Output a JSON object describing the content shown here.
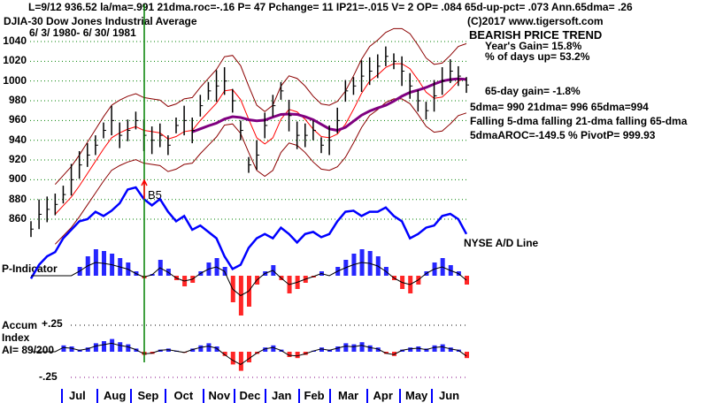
{
  "header": {
    "stats_line": "L=9/12  936.52  la/ma=.991 21dma.roc=-.16 P=  47 Pchange=  11 IP21=-.015 V= 2 OP= .084 65d-up-pct= .073 Ann.65dma= .26",
    "ticker": "DJIA-30  Dow Jones Industrial Average",
    "date_range": "6/ 3/ 1980- 6/ 30/ 1981",
    "copyright": "(C)2017 www.tigersoft.com"
  },
  "summary": {
    "trend": "BEARISH PRICE TREND",
    "year_gain": "Year's Gain= 15.8%",
    "days_up": "% of days up= 53.2%",
    "gain65": "65-day gain= -1.8%",
    "mas": "5dma= 990 21dma= 996 65dma=994",
    "falling": "Falling 5-dma  falling 21-dma  falling 65-dma",
    "aroc": "5dmaAROC=-149.5 %  PivotP= 999.93"
  },
  "labels": {
    "ad_line": "NYSE A/D Line",
    "p_indicator": "P-Indicator",
    "accum": "Accum",
    "index": "Index",
    "ai": "AI= 89/200",
    "plus25": "+.25",
    "minus25": "-.25",
    "signal": "B5"
  },
  "colors": {
    "price": "#000000",
    "ad": "#0000ff",
    "ma21": "#ff0000",
    "ma65": "#800080",
    "band": "#8b0000",
    "grid": "#008000",
    "pos": "#0000ff",
    "neg": "#ff0000",
    "signal": "#008000"
  },
  "chart_data": {
    "type": "line",
    "title": "DJIA-30 Dow Jones Industrial Average",
    "ylim": [
      850,
      1040
    ],
    "yticks": [
      1040,
      1020,
      1000,
      980,
      960,
      940,
      920,
      900,
      880,
      860
    ],
    "months": [
      "Jul",
      "Aug",
      "Sep",
      "Oct",
      "Nov",
      "Dec",
      "Jan",
      "Feb",
      "Mar",
      "Apr",
      "May",
      "Jun"
    ],
    "price": [
      850,
      865,
      870,
      875,
      885,
      900,
      915,
      925,
      935,
      950,
      960,
      945,
      950,
      960,
      945,
      940,
      945,
      935,
      955,
      960,
      950,
      975,
      990,
      995,
      1000,
      980,
      950,
      915,
      925,
      955,
      975,
      990,
      965,
      945,
      945,
      950,
      935,
      940,
      960,
      990,
      995,
      1005,
      1010,
      1015,
      1025,
      1020,
      1010,
      995,
      980,
      970,
      985,
      1000,
      1010,
      1005,
      996
    ],
    "ad_line": [
      4,
      17,
      25,
      29,
      42,
      50,
      58,
      60,
      67,
      63,
      68,
      75,
      88,
      90,
      79,
      73,
      79,
      67,
      58,
      63,
      50,
      54,
      48,
      42,
      25,
      13,
      17,
      33,
      42,
      46,
      42,
      52,
      46,
      38,
      46,
      48,
      43,
      46,
      58,
      67,
      68,
      63,
      67,
      67,
      71,
      63,
      58,
      42,
      46,
      52,
      54,
      63,
      65,
      60,
      46
    ],
    "p_indicator": [
      0,
      0,
      0,
      0,
      0,
      0,
      10,
      22,
      30,
      28,
      25,
      20,
      15,
      5,
      -3,
      2,
      18,
      8,
      -5,
      -12,
      -8,
      5,
      15,
      20,
      10,
      -30,
      -45,
      -35,
      -10,
      5,
      12,
      -5,
      -20,
      -15,
      -8,
      -2,
      5,
      0,
      10,
      18,
      25,
      30,
      28,
      22,
      10,
      -5,
      -15,
      -20,
      -10,
      5,
      15,
      20,
      12,
      5,
      -10
    ],
    "accum_index": [
      0,
      0,
      0,
      0,
      0.06,
      0.05,
      0.02,
      0.04,
      0.08,
      0.1,
      0.12,
      0.09,
      0.07,
      0.03,
      -0.03,
      -0.02,
      0.02,
      0.03,
      0.01,
      -0.01,
      0.03,
      0.06,
      0.08,
      0.05,
      -0.04,
      -0.12,
      -0.18,
      -0.1,
      -0.02,
      0.04,
      0.06,
      0.02,
      -0.05,
      -0.06,
      -0.03,
      0.01,
      0.04,
      0.02,
      0.05,
      0.08,
      0.07,
      0.09,
      0.06,
      0.04,
      -0.02,
      -0.04,
      0.02,
      0.04,
      0.05,
      0.03,
      0.06,
      0.07,
      0.04,
      0.02,
      -0.06
    ]
  }
}
